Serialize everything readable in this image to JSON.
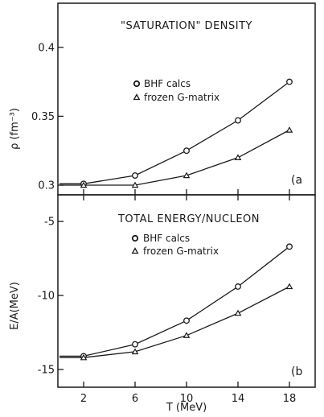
{
  "chart_data": [
    {
      "type": "line",
      "title": "\"SATURATION\" DENSITY",
      "xlabel": "T (MeV)",
      "ylabel": "ρ (fm⁻³)",
      "x": [
        2,
        6,
        10,
        14,
        18
      ],
      "xlim": [
        0,
        20
      ],
      "xticks": [
        "2",
        "6",
        "10",
        "14",
        "18"
      ],
      "ylim": [
        0.293,
        0.432
      ],
      "yticks": [
        0.3,
        0.35,
        0.4
      ],
      "ytick_labels": [
        "0.3",
        "0.35",
        "0.4"
      ],
      "series": [
        {
          "name": "BHF calcs",
          "marker": "circle",
          "values": [
            0.301,
            0.307,
            0.325,
            0.347,
            0.375
          ]
        },
        {
          "name": "frozen G-matrix",
          "marker": "triangle",
          "values": [
            0.3,
            0.3,
            0.307,
            0.32,
            0.34
          ]
        }
      ],
      "panel_letter": "(a",
      "grid": false,
      "legend_placement": "upper-left"
    },
    {
      "type": "line",
      "title": "TOTAL ENERGY/NUCLEON",
      "xlabel": "T (MeV)",
      "ylabel": "E/A(MeV)",
      "x": [
        2,
        6,
        10,
        14,
        18
      ],
      "xlim": [
        0,
        20
      ],
      "xticks": [
        "2",
        "6",
        "10",
        "14",
        "18"
      ],
      "ylim": [
        -16.2,
        -3.2
      ],
      "yticks": [
        -15,
        -10,
        -5
      ],
      "ytick_labels": [
        "-15",
        "-10",
        "-5"
      ],
      "series": [
        {
          "name": "BHF calcs",
          "marker": "circle",
          "values": [
            -14.1,
            -13.3,
            -11.7,
            -9.4,
            -6.7
          ]
        },
        {
          "name": "frozen G-matrix",
          "marker": "triangle",
          "values": [
            -14.2,
            -13.8,
            -12.7,
            -11.2,
            -9.4
          ]
        }
      ],
      "panel_letter": "(b",
      "grid": false,
      "legend_placement": "upper-left"
    }
  ],
  "colors": {
    "ink": "#1a1a1a",
    "background": "#ffffff"
  }
}
